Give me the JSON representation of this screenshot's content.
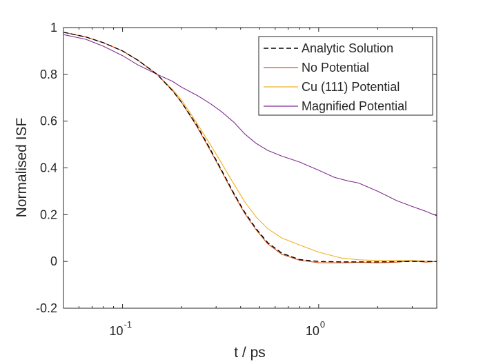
{
  "chart_data": {
    "type": "line",
    "title": "",
    "xlabel": "t / ps",
    "ylabel": "Normalised ISF",
    "xscale": "log",
    "xlim": [
      0.05,
      4
    ],
    "ylim": [
      -0.2,
      1
    ],
    "grid": false,
    "legend_position": "top-right",
    "x_ticks": [
      {
        "value": 0.1,
        "base": "10",
        "exp": "-1"
      },
      {
        "value": 1,
        "base": "10",
        "exp": "0"
      }
    ],
    "y_ticks": [
      {
        "value": -0.2,
        "label": "-0.2"
      },
      {
        "value": 0,
        "label": "0"
      },
      {
        "value": 0.2,
        "label": "0.2"
      },
      {
        "value": 0.4,
        "label": "0.4"
      },
      {
        "value": 0.6,
        "label": "0.6"
      },
      {
        "value": 0.8,
        "label": "0.8"
      },
      {
        "value": 1,
        "label": "1"
      }
    ],
    "series": [
      {
        "name": "Analytic Solution",
        "color": "#000000",
        "dash": true,
        "points": [
          [
            0.05,
            0.98
          ],
          [
            0.065,
            0.96
          ],
          [
            0.08,
            0.935
          ],
          [
            0.1,
            0.9
          ],
          [
            0.12,
            0.86
          ],
          [
            0.15,
            0.8
          ],
          [
            0.18,
            0.73
          ],
          [
            0.2,
            0.68
          ],
          [
            0.24,
            0.58
          ],
          [
            0.28,
            0.48
          ],
          [
            0.32,
            0.39
          ],
          [
            0.37,
            0.29
          ],
          [
            0.42,
            0.21
          ],
          [
            0.48,
            0.14
          ],
          [
            0.55,
            0.08
          ],
          [
            0.65,
            0.035
          ],
          [
            0.8,
            0.008
          ],
          [
            1.0,
            0.0
          ],
          [
            1.3,
            -0.002
          ],
          [
            2.0,
            -0.002
          ],
          [
            3.0,
            0.0
          ],
          [
            4.0,
            0.0
          ]
        ]
      },
      {
        "name": "No Potential",
        "color": "#D95319",
        "dash": false,
        "points": [
          [
            0.05,
            0.98
          ],
          [
            0.065,
            0.96
          ],
          [
            0.08,
            0.935
          ],
          [
            0.1,
            0.9
          ],
          [
            0.12,
            0.86
          ],
          [
            0.15,
            0.8
          ],
          [
            0.18,
            0.73
          ],
          [
            0.2,
            0.68
          ],
          [
            0.24,
            0.575
          ],
          [
            0.28,
            0.475
          ],
          [
            0.32,
            0.385
          ],
          [
            0.37,
            0.285
          ],
          [
            0.42,
            0.205
          ],
          [
            0.48,
            0.135
          ],
          [
            0.55,
            0.075
          ],
          [
            0.65,
            0.03
          ],
          [
            0.8,
            0.005
          ],
          [
            1.0,
            -0.005
          ],
          [
            1.3,
            -0.006
          ],
          [
            1.6,
            -0.004
          ],
          [
            2.0,
            -0.006
          ],
          [
            2.5,
            -0.003
          ],
          [
            3.0,
            0.002
          ],
          [
            3.5,
            -0.003
          ],
          [
            4.0,
            0.0
          ]
        ]
      },
      {
        "name": "Cu (111) Potential",
        "color": "#EDB120",
        "dash": false,
        "points": [
          [
            0.05,
            0.98
          ],
          [
            0.065,
            0.96
          ],
          [
            0.08,
            0.935
          ],
          [
            0.1,
            0.9
          ],
          [
            0.12,
            0.86
          ],
          [
            0.15,
            0.8
          ],
          [
            0.18,
            0.735
          ],
          [
            0.2,
            0.69
          ],
          [
            0.24,
            0.59
          ],
          [
            0.28,
            0.5
          ],
          [
            0.32,
            0.42
          ],
          [
            0.37,
            0.33
          ],
          [
            0.42,
            0.255
          ],
          [
            0.48,
            0.19
          ],
          [
            0.55,
            0.14
          ],
          [
            0.65,
            0.1
          ],
          [
            0.8,
            0.07
          ],
          [
            1.0,
            0.04
          ],
          [
            1.3,
            0.015
          ],
          [
            1.6,
            0.007
          ],
          [
            2.0,
            0.004
          ],
          [
            2.5,
            0.004
          ],
          [
            3.0,
            0.004
          ],
          [
            3.5,
            0.002
          ],
          [
            4.0,
            0.0
          ]
        ]
      },
      {
        "name": "Magnified Potential",
        "color": "#7E2F8E",
        "dash": false,
        "points": [
          [
            0.05,
            0.97
          ],
          [
            0.065,
            0.95
          ],
          [
            0.08,
            0.92
          ],
          [
            0.1,
            0.88
          ],
          [
            0.12,
            0.84
          ],
          [
            0.15,
            0.8
          ],
          [
            0.18,
            0.77
          ],
          [
            0.2,
            0.745
          ],
          [
            0.24,
            0.71
          ],
          [
            0.28,
            0.675
          ],
          [
            0.32,
            0.64
          ],
          [
            0.37,
            0.595
          ],
          [
            0.42,
            0.545
          ],
          [
            0.48,
            0.505
          ],
          [
            0.55,
            0.475
          ],
          [
            0.65,
            0.45
          ],
          [
            0.8,
            0.425
          ],
          [
            1.0,
            0.39
          ],
          [
            1.2,
            0.36
          ],
          [
            1.4,
            0.345
          ],
          [
            1.6,
            0.335
          ],
          [
            2.0,
            0.3
          ],
          [
            2.5,
            0.26
          ],
          [
            3.0,
            0.235
          ],
          [
            3.5,
            0.215
          ],
          [
            4.0,
            0.195
          ]
        ]
      }
    ]
  }
}
